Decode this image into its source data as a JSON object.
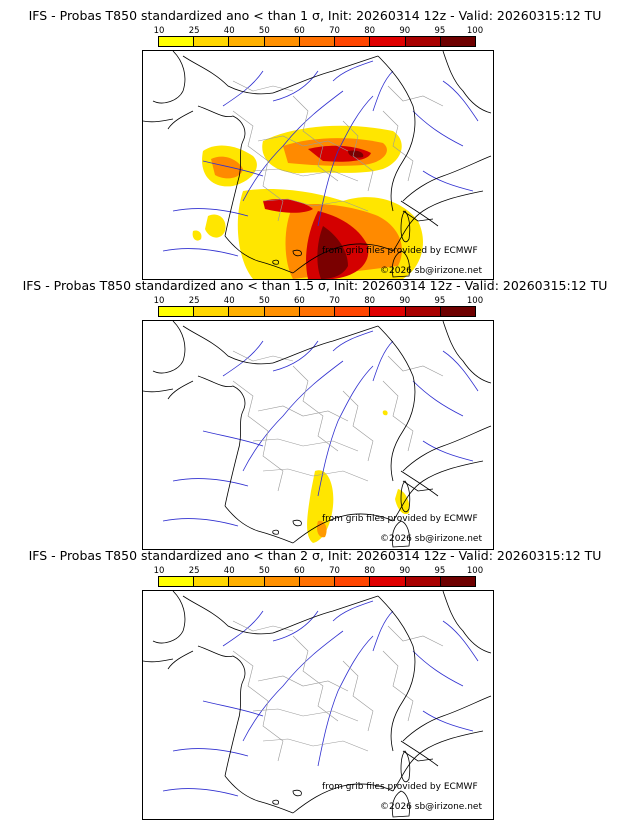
{
  "colorbar": {
    "ticks": [
      "10",
      "25",
      "40",
      "50",
      "60",
      "70",
      "80",
      "90",
      "95",
      "100"
    ],
    "colors": [
      "#ffff00",
      "#ffd700",
      "#ffb000",
      "#ff9000",
      "#ff7000",
      "#ff4500",
      "#e00000",
      "#a80000",
      "#6e0000"
    ]
  },
  "panels": [
    {
      "title": "IFS - Probas T850  standardized ano < than 1 σ, Init: 20260314 12z - Valid: 20260315:12 TU",
      "credit_source": "from grib files provided by ECMWF",
      "credit_copyright": "©2026 sb@irizone.net"
    },
    {
      "title": "IFS - Probas T850  standardized ano < than 1.5 σ, Init: 20260314 12z - Valid: 20260315:12 TU",
      "credit_source": "from grib files provided by ECMWF",
      "credit_copyright": "©2026 sb@irizone.net"
    },
    {
      "title": "IFS - Probas T850  standardized ano < than 2 σ, Init: 20260314 12z - Valid: 20260315:12 TU",
      "credit_source": "from grib files provided by ECMWF",
      "credit_copyright": "©2026 sb@irizone.net"
    }
  ]
}
